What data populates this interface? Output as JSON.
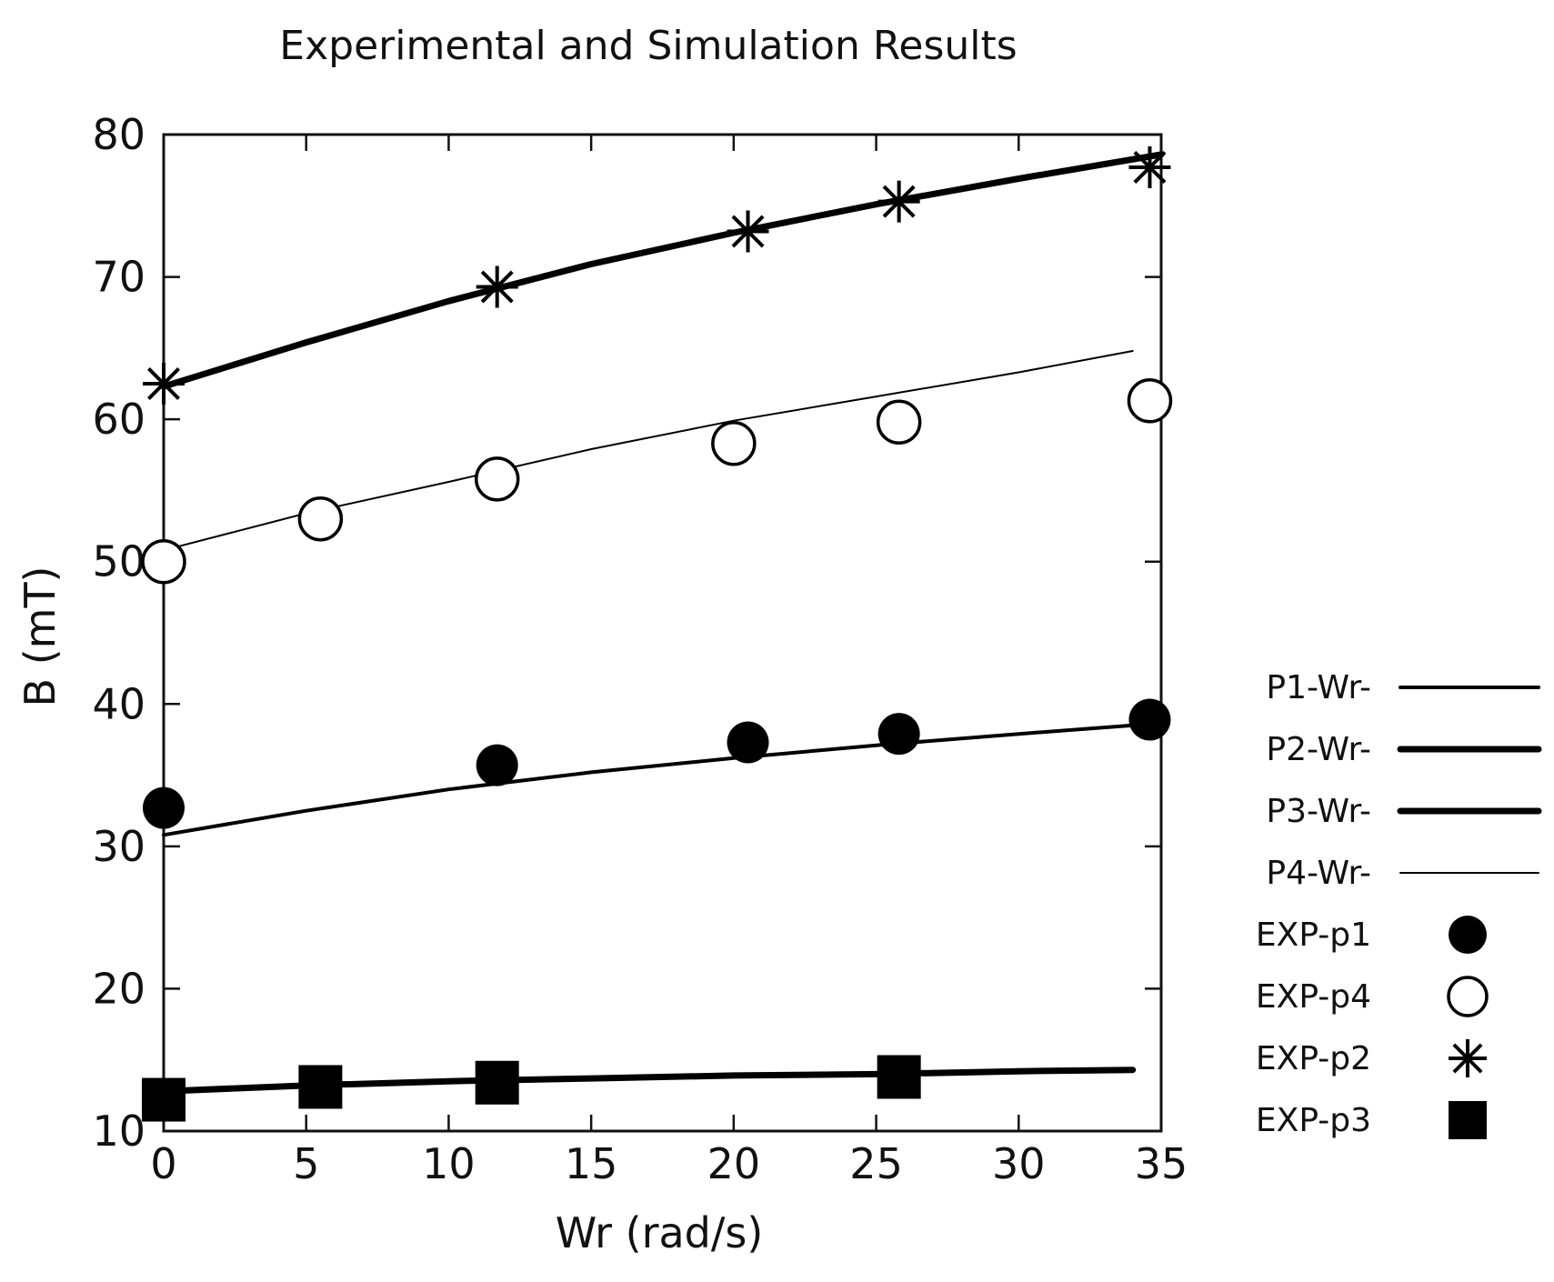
{
  "chart_data": {
    "type": "line",
    "title": "Experimental and Simulation Results",
    "xlabel": "Wr (rad/s)",
    "ylabel": "B (mT)",
    "xlim": [
      0,
      35
    ],
    "ylim": [
      10,
      80
    ],
    "xticks": [
      0,
      5,
      10,
      15,
      20,
      25,
      30,
      35
    ],
    "yticks": [
      10,
      20,
      30,
      40,
      50,
      60,
      70,
      80
    ],
    "xtick_labels": [
      "0",
      "5",
      "10",
      "15",
      "20",
      "25",
      "30",
      "35"
    ],
    "ytick_labels": [
      "10",
      "20",
      "30",
      "40",
      "50",
      "60",
      "70",
      "80"
    ],
    "grid": false,
    "legend_position": "right",
    "series": [
      {
        "name": "P1-Wr-",
        "kind": "line",
        "weight": "medium",
        "x": [
          0,
          5,
          10,
          15,
          20,
          25,
          30,
          34
        ],
        "y": [
          30.8,
          32.5,
          34.0,
          35.2,
          36.2,
          37.1,
          37.9,
          38.5
        ]
      },
      {
        "name": "P2-Wr-",
        "kind": "line",
        "weight": "heavy",
        "x": [
          0,
          5,
          10,
          15,
          20,
          25,
          30,
          35
        ],
        "y": [
          62.3,
          65.4,
          68.3,
          70.9,
          73.1,
          75.1,
          76.9,
          78.6
        ]
      },
      {
        "name": "P3-Wr-",
        "kind": "line",
        "weight": "heavy",
        "x": [
          0,
          5,
          10,
          15,
          20,
          25,
          30,
          34
        ],
        "y": [
          12.8,
          13.2,
          13.5,
          13.7,
          13.9,
          14.0,
          14.2,
          14.3
        ]
      },
      {
        "name": "P4-Wr-",
        "kind": "line",
        "weight": "thin",
        "x": [
          0,
          5,
          10,
          15,
          20,
          25,
          30,
          34
        ],
        "y": [
          50.8,
          53.4,
          55.6,
          57.9,
          59.9,
          61.6,
          63.3,
          64.8
        ]
      },
      {
        "name": "EXP-p1",
        "kind": "marker",
        "marker": "filled-circle",
        "x": [
          0,
          11.7,
          20.5,
          25.8,
          34.6
        ],
        "y": [
          32.7,
          35.7,
          37.3,
          37.9,
          38.9
        ]
      },
      {
        "name": "EXP-p4",
        "kind": "marker",
        "marker": "open-circle",
        "x": [
          0,
          5.5,
          11.7,
          20.0,
          25.8,
          34.6
        ],
        "y": [
          50.0,
          53.0,
          55.8,
          58.3,
          59.8,
          61.3
        ]
      },
      {
        "name": "EXP-p2",
        "kind": "marker",
        "marker": "asterisk",
        "x": [
          0,
          11.7,
          20.5,
          25.8,
          34.6
        ],
        "y": [
          62.5,
          69.3,
          73.2,
          75.3,
          77.7
        ]
      },
      {
        "name": "EXP-p3",
        "kind": "marker",
        "marker": "filled-square",
        "x": [
          0,
          5.5,
          11.7,
          25.8
        ],
        "y": [
          12.2,
          13.1,
          13.4,
          13.8
        ]
      }
    ]
  }
}
